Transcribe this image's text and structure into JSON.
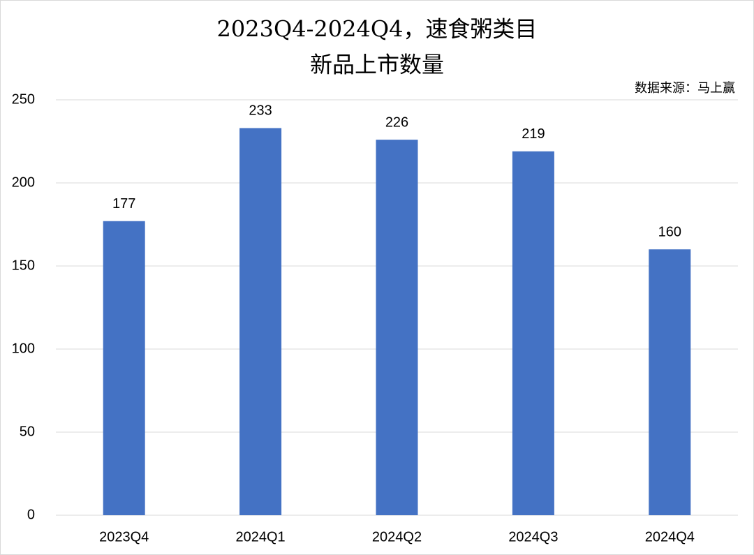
{
  "chart_data": {
    "type": "bar",
    "title": [
      "2023Q4-2024Q4，速食粥类目",
      "新品上市数量"
    ],
    "source": "数据来源：马上赢",
    "categories": [
      "2023Q4",
      "2024Q1",
      "2024Q2",
      "2024Q3",
      "2024Q4"
    ],
    "values": [
      177,
      233,
      226,
      219,
      160
    ],
    "color": "#4472c4",
    "ylim": [
      0,
      250
    ],
    "yticks": [
      0,
      50,
      100,
      150,
      200,
      250
    ],
    "grid": true
  }
}
